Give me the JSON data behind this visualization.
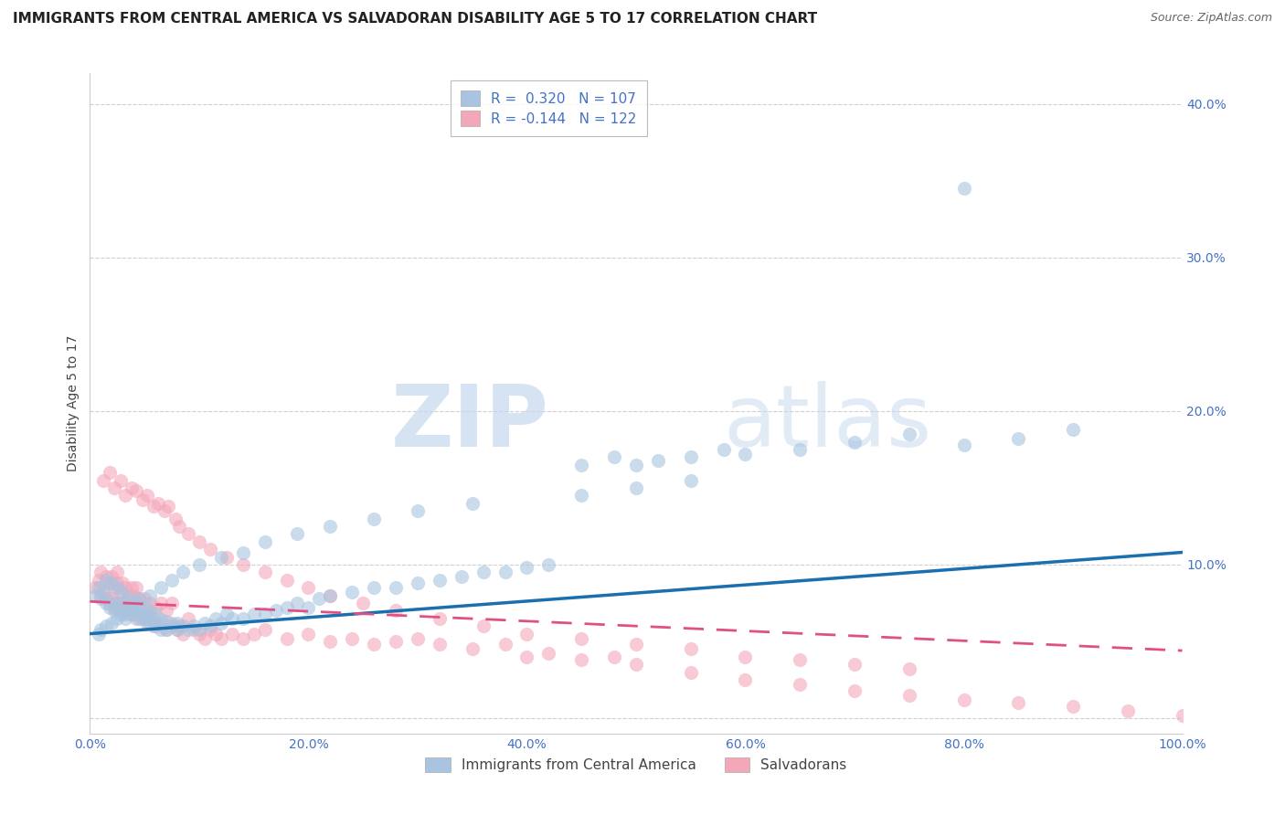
{
  "title": "IMMIGRANTS FROM CENTRAL AMERICA VS SALVADORAN DISABILITY AGE 5 TO 17 CORRELATION CHART",
  "source": "Source: ZipAtlas.com",
  "ylabel": "Disability Age 5 to 17",
  "xlim": [
    0,
    1.0
  ],
  "ylim": [
    -0.01,
    0.42
  ],
  "xticks": [
    0.0,
    0.2,
    0.4,
    0.6,
    0.8,
    1.0
  ],
  "xticklabels": [
    "0.0%",
    "20.0%",
    "40.0%",
    "60.0%",
    "80.0%",
    "100.0%"
  ],
  "yticks": [
    0.0,
    0.1,
    0.2,
    0.3,
    0.4
  ],
  "yticklabels": [
    "",
    "10.0%",
    "20.0%",
    "30.0%",
    "40.0%"
  ],
  "legend_labels": [
    "Immigrants from Central America",
    "Salvadorans"
  ],
  "series1_color": "#a8c4e0",
  "series2_color": "#f4a7b9",
  "trendline1_color": "#1a6faf",
  "trendline2_color": "#e05080",
  "R1": 0.32,
  "N1": 107,
  "R2": -0.144,
  "N2": 122,
  "watermark_zip": "ZIP",
  "watermark_atlas": "atlas",
  "background_color": "#ffffff",
  "grid_color": "#cccccc",
  "title_fontsize": 11,
  "axis_label_fontsize": 10,
  "tick_fontsize": 10,
  "legend_fontsize": 11,
  "trendline1_x0": 0.0,
  "trendline1_y0": 0.055,
  "trendline1_x1": 1.0,
  "trendline1_y1": 0.108,
  "trendline2_x0": 0.0,
  "trendline2_y0": 0.076,
  "trendline2_x1": 1.0,
  "trendline2_y1": 0.044,
  "series1_x": [
    0.005,
    0.008,
    0.01,
    0.012,
    0.015,
    0.015,
    0.018,
    0.02,
    0.02,
    0.022,
    0.025,
    0.025,
    0.028,
    0.03,
    0.03,
    0.032,
    0.035,
    0.035,
    0.038,
    0.04,
    0.04,
    0.042,
    0.045,
    0.045,
    0.048,
    0.05,
    0.05,
    0.052,
    0.055,
    0.055,
    0.058,
    0.06,
    0.06,
    0.065,
    0.065,
    0.07,
    0.07,
    0.075,
    0.08,
    0.08,
    0.085,
    0.09,
    0.095,
    0.1,
    0.105,
    0.11,
    0.115,
    0.12,
    0.125,
    0.13,
    0.14,
    0.15,
    0.16,
    0.17,
    0.18,
    0.19,
    0.2,
    0.21,
    0.22,
    0.24,
    0.26,
    0.28,
    0.3,
    0.32,
    0.34,
    0.36,
    0.38,
    0.4,
    0.42,
    0.45,
    0.48,
    0.5,
    0.52,
    0.55,
    0.58,
    0.6,
    0.65,
    0.7,
    0.75,
    0.8,
    0.85,
    0.9,
    0.8,
    0.55,
    0.5,
    0.45,
    0.35,
    0.3,
    0.26,
    0.22,
    0.19,
    0.16,
    0.14,
    0.12,
    0.1,
    0.085,
    0.075,
    0.065,
    0.055,
    0.045,
    0.038,
    0.03,
    0.025,
    0.02,
    0.015,
    0.01,
    0.008
  ],
  "series1_y": [
    0.08,
    0.085,
    0.078,
    0.082,
    0.075,
    0.09,
    0.072,
    0.076,
    0.088,
    0.07,
    0.073,
    0.085,
    0.068,
    0.075,
    0.082,
    0.065,
    0.072,
    0.078,
    0.068,
    0.07,
    0.076,
    0.065,
    0.068,
    0.074,
    0.065,
    0.066,
    0.072,
    0.062,
    0.065,
    0.07,
    0.06,
    0.062,
    0.068,
    0.058,
    0.064,
    0.058,
    0.063,
    0.06,
    0.058,
    0.062,
    0.06,
    0.058,
    0.06,
    0.058,
    0.062,
    0.06,
    0.065,
    0.062,
    0.068,
    0.065,
    0.065,
    0.068,
    0.068,
    0.07,
    0.072,
    0.075,
    0.072,
    0.078,
    0.08,
    0.082,
    0.085,
    0.085,
    0.088,
    0.09,
    0.092,
    0.095,
    0.095,
    0.098,
    0.1,
    0.165,
    0.17,
    0.165,
    0.168,
    0.17,
    0.175,
    0.172,
    0.175,
    0.18,
    0.185,
    0.345,
    0.182,
    0.188,
    0.178,
    0.155,
    0.15,
    0.145,
    0.14,
    0.135,
    0.13,
    0.125,
    0.12,
    0.115,
    0.108,
    0.105,
    0.1,
    0.095,
    0.09,
    0.085,
    0.08,
    0.078,
    0.072,
    0.068,
    0.065,
    0.062,
    0.06,
    0.058,
    0.055
  ],
  "series2_x": [
    0.005,
    0.008,
    0.01,
    0.01,
    0.012,
    0.015,
    0.015,
    0.018,
    0.018,
    0.02,
    0.02,
    0.022,
    0.022,
    0.025,
    0.025,
    0.025,
    0.028,
    0.028,
    0.03,
    0.03,
    0.032,
    0.032,
    0.035,
    0.035,
    0.038,
    0.038,
    0.04,
    0.04,
    0.042,
    0.042,
    0.045,
    0.045,
    0.048,
    0.05,
    0.05,
    0.052,
    0.055,
    0.055,
    0.058,
    0.06,
    0.06,
    0.065,
    0.065,
    0.07,
    0.07,
    0.075,
    0.075,
    0.08,
    0.082,
    0.085,
    0.09,
    0.095,
    0.1,
    0.105,
    0.11,
    0.115,
    0.12,
    0.13,
    0.14,
    0.15,
    0.16,
    0.18,
    0.2,
    0.22,
    0.24,
    0.26,
    0.28,
    0.3,
    0.32,
    0.35,
    0.38,
    0.4,
    0.42,
    0.45,
    0.48,
    0.5,
    0.55,
    0.6,
    0.65,
    0.7,
    0.75,
    0.8,
    0.85,
    0.9,
    0.95,
    1.0,
    0.012,
    0.018,
    0.022,
    0.028,
    0.032,
    0.038,
    0.042,
    0.048,
    0.052,
    0.058,
    0.062,
    0.068,
    0.072,
    0.078,
    0.082,
    0.09,
    0.1,
    0.11,
    0.125,
    0.14,
    0.16,
    0.18,
    0.2,
    0.22,
    0.25,
    0.28,
    0.32,
    0.36,
    0.4,
    0.45,
    0.5,
    0.55,
    0.6,
    0.65,
    0.7,
    0.75
  ],
  "series2_y": [
    0.085,
    0.09,
    0.08,
    0.095,
    0.082,
    0.078,
    0.092,
    0.075,
    0.088,
    0.078,
    0.092,
    0.072,
    0.085,
    0.075,
    0.088,
    0.095,
    0.07,
    0.082,
    0.075,
    0.088,
    0.072,
    0.085,
    0.068,
    0.08,
    0.072,
    0.085,
    0.068,
    0.08,
    0.072,
    0.085,
    0.065,
    0.078,
    0.07,
    0.065,
    0.078,
    0.068,
    0.062,
    0.075,
    0.065,
    0.06,
    0.072,
    0.062,
    0.075,
    0.058,
    0.07,
    0.062,
    0.075,
    0.058,
    0.06,
    0.055,
    0.065,
    0.058,
    0.055,
    0.052,
    0.058,
    0.055,
    0.052,
    0.055,
    0.052,
    0.055,
    0.058,
    0.052,
    0.055,
    0.05,
    0.052,
    0.048,
    0.05,
    0.052,
    0.048,
    0.045,
    0.048,
    0.04,
    0.042,
    0.038,
    0.04,
    0.035,
    0.03,
    0.025,
    0.022,
    0.018,
    0.015,
    0.012,
    0.01,
    0.008,
    0.005,
    0.002,
    0.155,
    0.16,
    0.15,
    0.155,
    0.145,
    0.15,
    0.148,
    0.142,
    0.145,
    0.138,
    0.14,
    0.135,
    0.138,
    0.13,
    0.125,
    0.12,
    0.115,
    0.11,
    0.105,
    0.1,
    0.095,
    0.09,
    0.085,
    0.08,
    0.075,
    0.07,
    0.065,
    0.06,
    0.055,
    0.052,
    0.048,
    0.045,
    0.04,
    0.038,
    0.035,
    0.032
  ]
}
